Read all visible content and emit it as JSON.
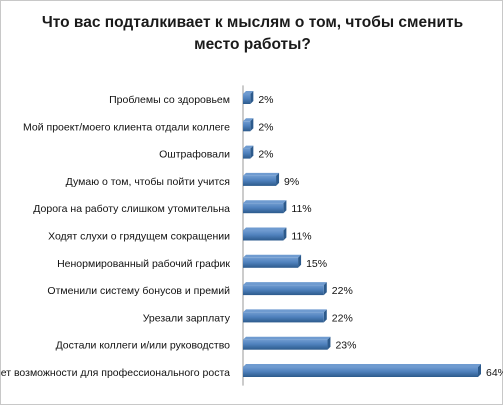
{
  "chart_data": {
    "type": "bar",
    "orientation": "horizontal",
    "title": "Что вас подталкивает к мыслям о том, чтобы сменить место работы?",
    "categories": [
      "Проблемы со здоровьем",
      "Мой проект/моего клиента отдали коллеге",
      "Оштрафовали",
      "Думаю о том, чтобы пойти учится",
      "Дорога на работу слишком утомительна",
      "Ходят слухи о грядущем сокращении",
      "Ненормированный рабочий график",
      "Отменили систему бонусов и премий",
      "Урезали зарплату",
      "Достали коллеги и/или руководство",
      "Нет возможности для профессионального роста"
    ],
    "values": [
      2,
      2,
      2,
      9,
      11,
      11,
      15,
      22,
      22,
      23,
      64
    ],
    "value_labels": [
      "2%",
      "2%",
      "2%",
      "9%",
      "11%",
      "11%",
      "15%",
      "22%",
      "22%",
      "23%",
      "64%"
    ],
    "unit": "%",
    "xlim": [
      0,
      70
    ],
    "xlabel": "",
    "ylabel": "",
    "grid": false,
    "legend": "none",
    "bar_color": "#4f81bd",
    "bar_color_dark": "#2c5a8c",
    "bar_color_light": "#6f9bd0"
  }
}
